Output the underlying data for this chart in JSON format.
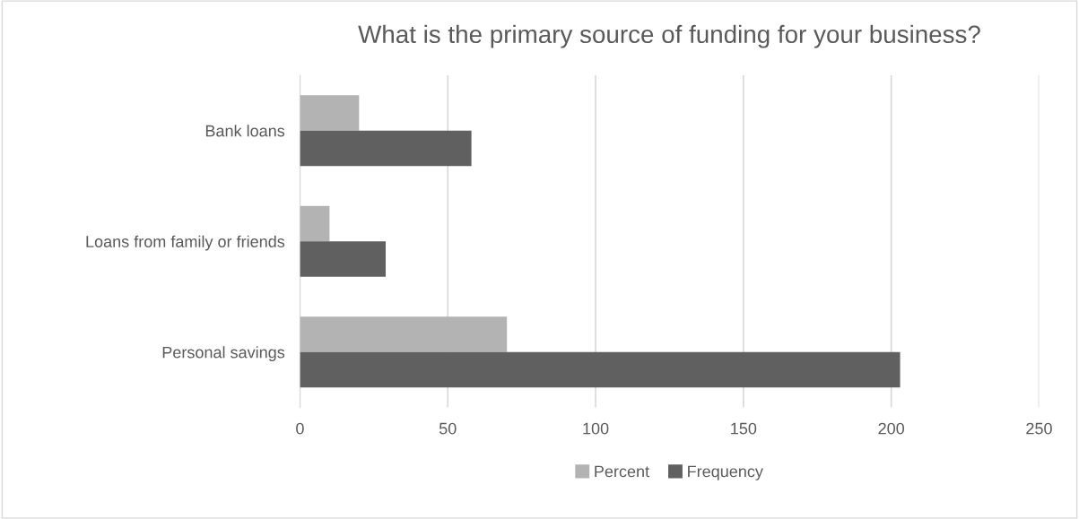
{
  "chart_data": {
    "type": "bar",
    "orientation": "horizontal",
    "title": "What is the primary source of funding for your business?",
    "categories": [
      "Bank loans",
      "Loans from family or friends",
      "Personal savings"
    ],
    "series": [
      {
        "name": "Percent",
        "color": "#b3b3b3",
        "values": [
          20,
          10,
          70
        ]
      },
      {
        "name": "Frequency",
        "color": "#606060",
        "values": [
          58,
          29,
          203
        ]
      }
    ],
    "xlim": [
      0,
      250
    ],
    "xticks": [
      0,
      50,
      100,
      150,
      200,
      250
    ],
    "grid": "x",
    "legend": "bottom"
  }
}
